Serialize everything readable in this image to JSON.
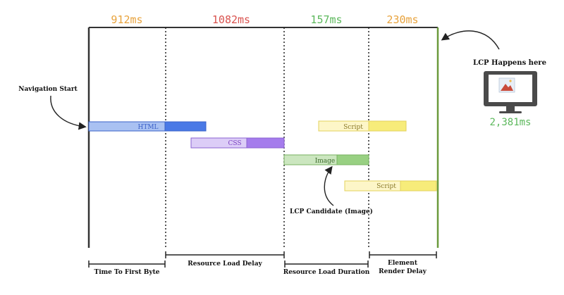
{
  "phases": [
    {
      "duration": "912ms",
      "label": "Time To First Byte",
      "color": "#e8a33d"
    },
    {
      "duration": "1082ms",
      "label": "Resource Load Delay",
      "color": "#d9534f"
    },
    {
      "duration": "157ms",
      "label": "Resource Load Duration",
      "color": "#5cb85c"
    },
    {
      "duration": "230ms",
      "label_line1": "Element",
      "label_line2": "Render Delay",
      "color": "#e8a33d"
    }
  ],
  "resources": [
    {
      "label": "HTML",
      "label_color": "#3a5fc8",
      "light": "#a9c1f2",
      "dark": "#4a79e6",
      "stroke": "#3a62c8"
    },
    {
      "label": "CSS",
      "label_color": "#7a3fc0",
      "light": "#dccdf7",
      "dark": "#a57cec",
      "stroke": "#8a62d0"
    },
    {
      "label": "Image",
      "label_color": "#3d6b2c",
      "light": "#cbe6bf",
      "dark": "#98d082",
      "stroke": "#78b262"
    },
    {
      "label": "Script",
      "label_color": "#8a7a2a",
      "light": "#fdf6c8",
      "dark": "#f7ec7a",
      "stroke": "#e3d25c"
    },
    {
      "label": "Script",
      "label_color": "#8a7a2a",
      "light": "#fdf6c8",
      "dark": "#f7ec7a",
      "stroke": "#e3d25c"
    }
  ],
  "annotations": {
    "navigation_start": "Navigation Start",
    "lcp_candidate": "LCP Candidate (Image)",
    "lcp_happens": "LCP Happens here",
    "lcp_time": "2,381ms",
    "lcp_time_color": "#5cb85c",
    "lcp_line_color": "#6a9a3c"
  }
}
